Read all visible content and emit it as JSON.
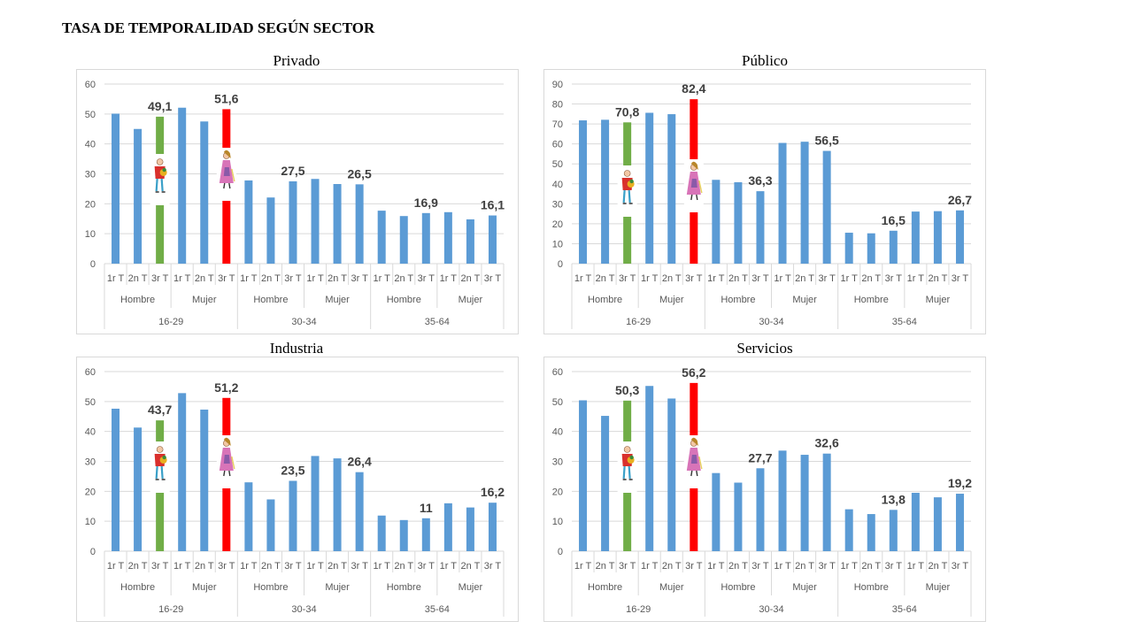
{
  "title": "TASA DE TEMPORALIDAD SEGÚN SECTOR",
  "colors": {
    "bar": "#5B9BD5",
    "highlight_green": "#70AD47",
    "highlight_red": "#FF0000",
    "grid": "#D9D9D9",
    "axis_text": "#595959",
    "label": "#404040"
  },
  "icons": [
    "man-figure-icon",
    "woman-figure-icon"
  ],
  "chart_data": [
    {
      "id": "privado",
      "type": "bar",
      "title": "Privado",
      "ylim": [
        0,
        60
      ],
      "yticks": [
        "0",
        "10",
        "20",
        "30",
        "40",
        "50",
        "60"
      ],
      "grid": true,
      "quarters": [
        "1r T",
        "2n T",
        "3r T"
      ],
      "sexes": [
        "Hombre",
        "Mujer"
      ],
      "ages": [
        "16-29",
        "30-34",
        "35-64"
      ],
      "values": [
        50.1,
        45.0,
        49.1,
        52.1,
        47.5,
        51.6,
        27.8,
        22.1,
        27.5,
        28.3,
        26.6,
        26.5,
        17.7,
        15.9,
        16.9,
        17.2,
        14.8,
        16.1
      ],
      "labels": [
        "",
        "",
        "49,1",
        "",
        "",
        "51,6",
        "",
        "",
        "27,5",
        "",
        "",
        "26,5",
        "",
        "",
        "16,9",
        "",
        "",
        "16,1"
      ]
    },
    {
      "id": "publico",
      "type": "bar",
      "title": "Público",
      "ylim": [
        0,
        90
      ],
      "yticks": [
        "0",
        "10",
        "20",
        "30",
        "40",
        "50",
        "60",
        "70",
        "80",
        "90"
      ],
      "grid": true,
      "quarters": [
        "1r T",
        "2n T",
        "3r T"
      ],
      "sexes": [
        "Hombre",
        "Mujer"
      ],
      "ages": [
        "16-29",
        "30-34",
        "35-64"
      ],
      "values": [
        71.8,
        72.1,
        70.8,
        75.6,
        74.9,
        82.4,
        42.0,
        40.8,
        36.3,
        60.5,
        61.1,
        56.5,
        15.5,
        15.2,
        16.5,
        26.1,
        26.3,
        26.7
      ],
      "labels": [
        "",
        "",
        "70,8",
        "",
        "",
        "82,4",
        "",
        "",
        "36,3",
        "",
        "",
        "56,5",
        "",
        "",
        "16,5",
        "",
        "",
        "26,7"
      ]
    },
    {
      "id": "industria",
      "type": "bar",
      "title": "Industria",
      "ylim": [
        0,
        60
      ],
      "yticks": [
        "0",
        "10",
        "20",
        "30",
        "40",
        "50",
        "60"
      ],
      "grid": true,
      "quarters": [
        "1r T",
        "2n T",
        "3r T"
      ],
      "sexes": [
        "Hombre",
        "Mujer"
      ],
      "ages": [
        "16-29",
        "30-34",
        "35-64"
      ],
      "values": [
        47.6,
        41.3,
        43.7,
        52.8,
        47.3,
        51.2,
        23.0,
        17.3,
        23.5,
        31.8,
        31.0,
        26.4,
        11.9,
        10.4,
        11.0,
        16.0,
        14.6,
        16.2
      ],
      "labels": [
        "",
        "",
        "43,7",
        "",
        "",
        "51,2",
        "",
        "",
        "23,5",
        "",
        "",
        "26,4",
        "",
        "",
        "11",
        "",
        "",
        "16,2"
      ]
    },
    {
      "id": "servicios",
      "type": "bar",
      "title": "Servicios",
      "ylim": [
        0,
        60
      ],
      "yticks": [
        "0",
        "10",
        "20",
        "30",
        "40",
        "50",
        "60"
      ],
      "grid": true,
      "quarters": [
        "1r T",
        "2n T",
        "3r T"
      ],
      "sexes": [
        "Hombre",
        "Mujer"
      ],
      "ages": [
        "16-29",
        "30-34",
        "35-64"
      ],
      "values": [
        50.4,
        45.2,
        50.3,
        55.2,
        51.0,
        56.2,
        26.1,
        22.9,
        27.7,
        33.6,
        32.2,
        32.6,
        14.0,
        12.4,
        13.8,
        19.5,
        18.0,
        19.2
      ],
      "labels": [
        "",
        "",
        "50,3",
        "",
        "",
        "56,2",
        "",
        "",
        "27,7",
        "",
        "",
        "32,6",
        "",
        "",
        "13,8",
        "",
        "",
        "19,2"
      ]
    }
  ]
}
